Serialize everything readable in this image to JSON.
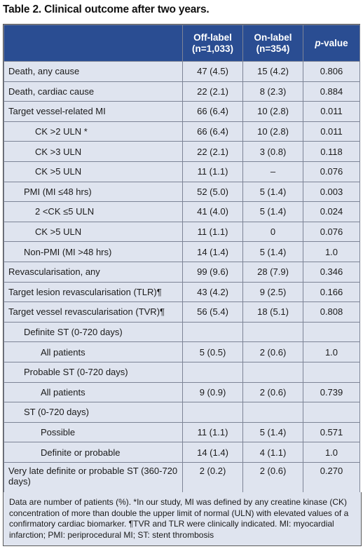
{
  "title": "Table 2. Clinical outcome after two years.",
  "headers": {
    "off_label": "Off-label",
    "off_label_n": "(n=1,033)",
    "on_label": "On-label",
    "on_label_n": "(n=354)",
    "p_italic": "p",
    "p_rest": "-value"
  },
  "rows": [
    {
      "label": "Death, any cause",
      "off": "47 (4.5)",
      "on": "15 (4.2)",
      "p": "0.806"
    },
    {
      "label": "Death, cardiac cause",
      "off": "22 (2.1)",
      "on": "8 (2.3)",
      "p": "0.884"
    },
    {
      "label": "Target vessel-related MI",
      "off": "66 (6.4)",
      "on": "10 (2.8)",
      "p": "0.011"
    },
    {
      "label": "CK >2 ULN *",
      "off": "66 (6.4)",
      "on": "10 (2.8)",
      "p": "0.011"
    },
    {
      "label": "CK >3 ULN",
      "off": "22 (2.1)",
      "on": "3 (0.8)",
      "p": "0.118"
    },
    {
      "label": "CK >5 ULN",
      "off": "11 (1.1)",
      "on": "–",
      "p": "0.076"
    },
    {
      "label": "PMI (MI ≤48 hrs)",
      "off": "52 (5.0)",
      "on": "5 (1.4)",
      "p": "0.003"
    },
    {
      "label": "2 <CK ≤5 ULN",
      "off": "41 (4.0)",
      "on": "5 (1.4)",
      "p": "0.024"
    },
    {
      "label": "CK >5 ULN",
      "off": "11 (1.1)",
      "on": "0",
      "p": "0.076"
    },
    {
      "label": "Non-PMI (MI >48 hrs)",
      "off": "14 (1.4)",
      "on": "5 (1.4)",
      "p": "1.0"
    },
    {
      "label": "Revascularisation, any",
      "off": "99 (9.6)",
      "on": "28 (7.9)",
      "p": "0.346"
    },
    {
      "label": "Target lesion revascularisation (TLR)¶",
      "off": "43 (4.2)",
      "on": "9 (2.5)",
      "p": "0.166"
    },
    {
      "label": "Target vessel revascularisation (TVR)¶",
      "off": "56 (5.4)",
      "on": "18 (5.1)",
      "p": "0.808"
    },
    {
      "label": "Definite ST (0-720 days)",
      "off": "",
      "on": "",
      "p": ""
    },
    {
      "label": "All patients",
      "off": "5 (0.5)",
      "on": "2 (0.6)",
      "p": "1.0"
    },
    {
      "label": "Probable ST (0-720 days)",
      "off": "",
      "on": "",
      "p": ""
    },
    {
      "label": "All patients",
      "off": "9 (0.9)",
      "on": "2 (0.6)",
      "p": "0.739"
    },
    {
      "label": "ST (0-720 days)",
      "off": "",
      "on": "",
      "p": ""
    },
    {
      "label": "Possible",
      "off": "11 (1.1)",
      "on": "5 (1.4)",
      "p": "0.571"
    },
    {
      "label": "Definite or probable",
      "off": "14 (1.4)",
      "on": "4 (1.1)",
      "p": "1.0"
    },
    {
      "label": "Very late definite or probable ST (360-720 days)",
      "off": "2 (0.2)",
      "on": "2 (0.6)",
      "p": "0.270"
    }
  ],
  "footnote": "Data are number of patients (%). *In our study, MI was defined by any creatine kinase (CK) concentration of more than double the upper limit of normal (ULN) with elevated values of a confirmatory cardiac biomarker. ¶TVR and TLR were clinically indicated. MI: myocardial infarction; PMI: periprocedural MI; ST: stent thrombosis"
}
